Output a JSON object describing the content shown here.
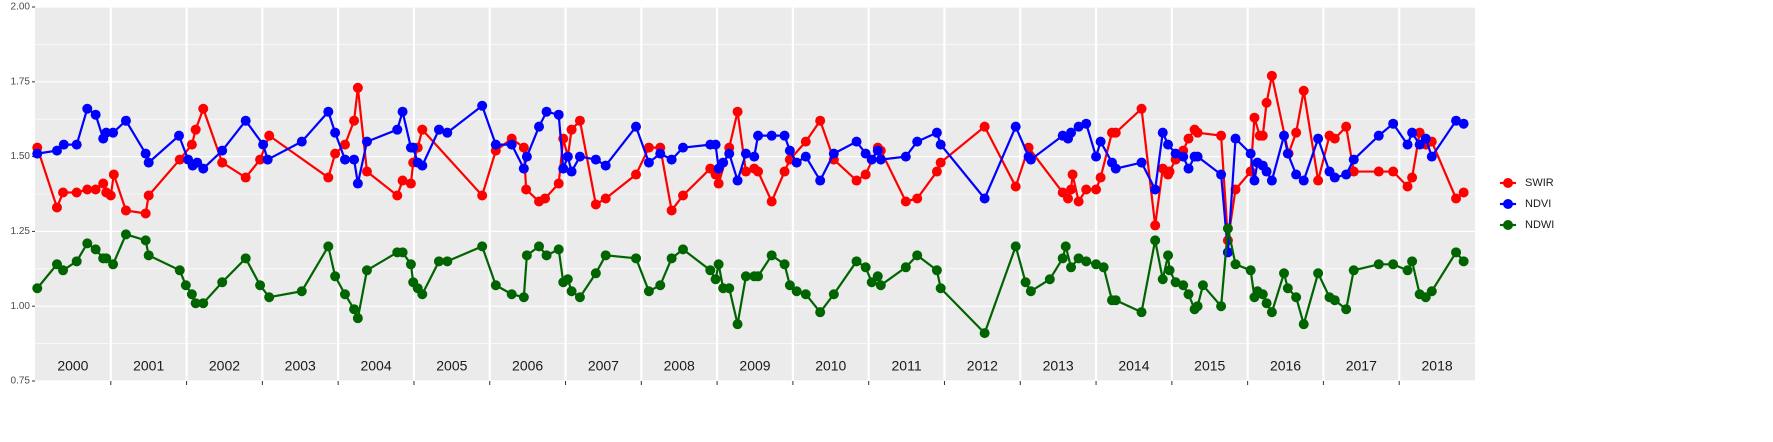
{
  "chart_data": {
    "type": "line",
    "xlim": [
      2000,
      2019
    ],
    "ylim": [
      0.75,
      2.0
    ],
    "yticks": [
      {
        "value": 0.75,
        "label": "0.75"
      },
      {
        "value": 1.0,
        "label": "1.00"
      },
      {
        "value": 1.25,
        "label": "1.25"
      },
      {
        "value": 1.5,
        "label": "1.50"
      },
      {
        "value": 1.75,
        "label": "1.75"
      },
      {
        "value": 2.0,
        "label": "2.00"
      }
    ],
    "xticks": [
      {
        "value": 2000.5,
        "label": "2000"
      },
      {
        "value": 2001.5,
        "label": "2001"
      },
      {
        "value": 2002.5,
        "label": "2002"
      },
      {
        "value": 2003.5,
        "label": "2003"
      },
      {
        "value": 2004.5,
        "label": "2004"
      },
      {
        "value": 2005.5,
        "label": "2005"
      },
      {
        "value": 2006.5,
        "label": "2006"
      },
      {
        "value": 2007.5,
        "label": "2007"
      },
      {
        "value": 2008.5,
        "label": "2008"
      },
      {
        "value": 2009.5,
        "label": "2009"
      },
      {
        "value": 2010.5,
        "label": "2010"
      },
      {
        "value": 2011.5,
        "label": "2011"
      },
      {
        "value": 2012.5,
        "label": "2012"
      },
      {
        "value": 2013.5,
        "label": "2013"
      },
      {
        "value": 2014.5,
        "label": "2014"
      },
      {
        "value": 2015.5,
        "label": "2015"
      },
      {
        "value": 2016.5,
        "label": "2016"
      },
      {
        "value": 2017.5,
        "label": "2017"
      },
      {
        "value": 2018.5,
        "label": "2018"
      }
    ],
    "grid": true,
    "legend": "right",
    "series": [
      {
        "name": "SWIR",
        "color": "#ff0000",
        "x": [
          2000.03,
          2000.29,
          2000.37,
          2000.55,
          2000.69,
          2000.8,
          2000.9,
          2000.94,
          2001.0,
          2001.04,
          2001.2,
          2001.46,
          2001.5,
          2001.91,
          2002.07,
          2002.12,
          2002.22,
          2002.47,
          2002.78,
          2002.97,
          2003.09,
          2003.87,
          2003.96,
          2004.09,
          2004.21,
          2004.26,
          2004.38,
          2004.78,
          2004.85,
          2004.96,
          2004.99,
          2005.05,
          2005.11,
          2005.9,
          2006.08,
          2006.29,
          2006.45,
          2006.48,
          2006.65,
          2006.73,
          2006.91,
          2006.97,
          2007.03,
          2007.08,
          2007.19,
          2007.4,
          2007.53,
          2007.93,
          2008.1,
          2008.25,
          2008.4,
          2008.55,
          2008.91,
          2008.98,
          2009.02,
          2009.16,
          2009.27,
          2009.38,
          2009.49,
          2009.54,
          2009.72,
          2009.89,
          2009.96,
          2010.17,
          2010.36,
          2010.54,
          2010.84,
          2010.96,
          2011.12,
          2011.16,
          2011.49,
          2011.64,
          2011.9,
          2011.95,
          2012.53,
          2012.94,
          2013.11,
          2013.56,
          2013.63,
          2013.67,
          2013.69,
          2013.77,
          2013.87,
          2014.0,
          2014.06,
          2014.21,
          2014.26,
          2014.6,
          2014.78,
          2014.88,
          2014.95,
          2014.97,
          2015.05,
          2015.15,
          2015.22,
          2015.3,
          2015.34,
          2015.65,
          2015.74,
          2015.84,
          2016.04,
          2016.09,
          2016.16,
          2016.2,
          2016.25,
          2016.32,
          2016.54,
          2016.64,
          2016.74,
          2016.93,
          2017.08,
          2017.15,
          2017.3,
          2017.4,
          2017.73,
          2017.92,
          2018.11,
          2018.17,
          2018.27,
          2018.35,
          2018.43,
          2018.75,
          2018.85
        ],
        "values": [
          1.53,
          1.33,
          1.38,
          1.38,
          1.39,
          1.39,
          1.41,
          1.38,
          1.37,
          1.44,
          1.32,
          1.31,
          1.37,
          1.49,
          1.54,
          1.59,
          1.66,
          1.48,
          1.43,
          1.49,
          1.57,
          1.43,
          1.51,
          1.54,
          1.62,
          1.73,
          1.45,
          1.37,
          1.42,
          1.41,
          1.48,
          1.53,
          1.59,
          1.37,
          1.52,
          1.56,
          1.53,
          1.39,
          1.35,
          1.36,
          1.41,
          1.56,
          1.5,
          1.59,
          1.62,
          1.34,
          1.36,
          1.44,
          1.53,
          1.53,
          1.32,
          1.37,
          1.46,
          1.44,
          1.41,
          1.53,
          1.65,
          1.45,
          1.46,
          1.45,
          1.35,
          1.45,
          1.49,
          1.55,
          1.62,
          1.49,
          1.42,
          1.44,
          1.53,
          1.52,
          1.35,
          1.36,
          1.45,
          1.48,
          1.6,
          1.4,
          1.53,
          1.38,
          1.36,
          1.39,
          1.44,
          1.35,
          1.39,
          1.39,
          1.43,
          1.58,
          1.58,
          1.66,
          1.27,
          1.46,
          1.44,
          1.45,
          1.49,
          1.52,
          1.56,
          1.59,
          1.58,
          1.57,
          1.22,
          1.39,
          1.45,
          1.63,
          1.57,
          1.57,
          1.68,
          1.77,
          1.51,
          1.58,
          1.72,
          1.42,
          1.57,
          1.56,
          1.6,
          1.45,
          1.45,
          1.45,
          1.4,
          1.43,
          1.58,
          1.54,
          1.55,
          1.36,
          1.38
        ]
      },
      {
        "name": "NDVI",
        "color": "#0000ff",
        "x": [
          2000.03,
          2000.29,
          2000.38,
          2000.55,
          2000.69,
          2000.8,
          2000.9,
          2000.94,
          2001.03,
          2001.2,
          2001.46,
          2001.5,
          2001.9,
          2002.02,
          2002.08,
          2002.14,
          2002.22,
          2002.47,
          2002.78,
          2003.01,
          2003.07,
          2003.52,
          2003.87,
          2003.96,
          2004.09,
          2004.21,
          2004.26,
          2004.38,
          2004.78,
          2004.85,
          2004.96,
          2004.99,
          2005.05,
          2005.11,
          2005.33,
          2005.44,
          2005.9,
          2006.08,
          2006.29,
          2006.45,
          2006.49,
          2006.65,
          2006.75,
          2006.91,
          2006.97,
          2007.03,
          2007.08,
          2007.19,
          2007.4,
          2007.53,
          2007.93,
          2008.1,
          2008.25,
          2008.4,
          2008.55,
          2008.91,
          2008.98,
          2009.02,
          2009.08,
          2009.16,
          2009.27,
          2009.38,
          2009.49,
          2009.54,
          2009.72,
          2009.89,
          2009.96,
          2010.05,
          2010.17,
          2010.36,
          2010.54,
          2010.84,
          2010.96,
          2011.04,
          2011.12,
          2011.16,
          2011.49,
          2011.64,
          2011.9,
          2011.95,
          2012.53,
          2012.94,
          2013.11,
          2013.14,
          2013.56,
          2013.63,
          2013.67,
          2013.77,
          2013.87,
          2014.0,
          2014.06,
          2014.21,
          2014.26,
          2014.6,
          2014.78,
          2014.88,
          2014.95,
          2015.05,
          2015.15,
          2015.22,
          2015.3,
          2015.34,
          2015.65,
          2015.74,
          2015.84,
          2016.04,
          2016.09,
          2016.13,
          2016.2,
          2016.25,
          2016.32,
          2016.48,
          2016.53,
          2016.64,
          2016.74,
          2016.93,
          2017.08,
          2017.15,
          2017.3,
          2017.4,
          2017.73,
          2017.92,
          2018.11,
          2018.17,
          2018.27,
          2018.35,
          2018.43,
          2018.75,
          2018.85
        ],
        "values": [
          1.51,
          1.52,
          1.54,
          1.54,
          1.66,
          1.64,
          1.56,
          1.58,
          1.58,
          1.62,
          1.51,
          1.48,
          1.57,
          1.49,
          1.47,
          1.48,
          1.46,
          1.52,
          1.62,
          1.54,
          1.49,
          1.55,
          1.65,
          1.58,
          1.49,
          1.49,
          1.41,
          1.55,
          1.59,
          1.65,
          1.53,
          1.53,
          1.48,
          1.47,
          1.59,
          1.58,
          1.67,
          1.54,
          1.54,
          1.46,
          1.5,
          1.6,
          1.65,
          1.64,
          1.46,
          1.5,
          1.45,
          1.5,
          1.49,
          1.47,
          1.6,
          1.48,
          1.51,
          1.49,
          1.53,
          1.54,
          1.54,
          1.46,
          1.48,
          1.51,
          1.42,
          1.51,
          1.5,
          1.57,
          1.57,
          1.57,
          1.52,
          1.48,
          1.5,
          1.42,
          1.51,
          1.55,
          1.51,
          1.49,
          1.52,
          1.49,
          1.5,
          1.55,
          1.58,
          1.54,
          1.36,
          1.6,
          1.5,
          1.49,
          1.57,
          1.56,
          1.58,
          1.6,
          1.61,
          1.5,
          1.55,
          1.48,
          1.46,
          1.48,
          1.39,
          1.58,
          1.54,
          1.51,
          1.5,
          1.46,
          1.5,
          1.5,
          1.44,
          1.18,
          1.56,
          1.51,
          1.42,
          1.48,
          1.47,
          1.45,
          1.42,
          1.57,
          1.51,
          1.44,
          1.42,
          1.56,
          1.45,
          1.43,
          1.44,
          1.49,
          1.57,
          1.61,
          1.54,
          1.58,
          1.54,
          1.56,
          1.5,
          1.62,
          1.61
        ]
      },
      {
        "name": "NDWI",
        "color": "#006400",
        "x": [
          2000.03,
          2000.29,
          2000.37,
          2000.55,
          2000.69,
          2000.8,
          2000.9,
          2000.94,
          2001.03,
          2001.2,
          2001.46,
          2001.5,
          2001.91,
          2001.99,
          2002.07,
          2002.12,
          2002.22,
          2002.47,
          2002.78,
          2002.97,
          2003.09,
          2003.52,
          2003.87,
          2003.96,
          2004.09,
          2004.21,
          2004.26,
          2004.38,
          2004.78,
          2004.85,
          2004.96,
          2004.99,
          2005.05,
          2005.11,
          2005.33,
          2005.44,
          2005.9,
          2006.08,
          2006.29,
          2006.45,
          2006.49,
          2006.65,
          2006.75,
          2006.91,
          2006.97,
          2007.03,
          2007.08,
          2007.19,
          2007.4,
          2007.53,
          2007.93,
          2008.1,
          2008.25,
          2008.4,
          2008.55,
          2008.91,
          2008.98,
          2009.02,
          2009.08,
          2009.16,
          2009.27,
          2009.38,
          2009.49,
          2009.54,
          2009.72,
          2009.89,
          2009.96,
          2010.05,
          2010.17,
          2010.36,
          2010.54,
          2010.84,
          2010.96,
          2011.04,
          2011.12,
          2011.16,
          2011.49,
          2011.64,
          2011.9,
          2011.95,
          2012.53,
          2012.94,
          2013.07,
          2013.14,
          2013.39,
          2013.56,
          2013.6,
          2013.67,
          2013.77,
          2013.87,
          2014.0,
          2014.1,
          2014.21,
          2014.26,
          2014.6,
          2014.78,
          2014.88,
          2014.95,
          2014.97,
          2015.05,
          2015.15,
          2015.22,
          2015.3,
          2015.34,
          2015.41,
          2015.65,
          2015.74,
          2015.84,
          2016.04,
          2016.09,
          2016.13,
          2016.2,
          2016.25,
          2016.32,
          2016.48,
          2016.53,
          2016.64,
          2016.74,
          2016.93,
          2017.08,
          2017.15,
          2017.3,
          2017.4,
          2017.73,
          2017.92,
          2018.11,
          2018.17,
          2018.27,
          2018.35,
          2018.43,
          2018.75,
          2018.85
        ],
        "values": [
          1.06,
          1.14,
          1.12,
          1.15,
          1.21,
          1.19,
          1.16,
          1.16,
          1.14,
          1.24,
          1.22,
          1.17,
          1.12,
          1.07,
          1.04,
          1.01,
          1.01,
          1.08,
          1.16,
          1.07,
          1.03,
          1.05,
          1.2,
          1.1,
          1.04,
          0.99,
          0.96,
          1.12,
          1.18,
          1.18,
          1.14,
          1.08,
          1.06,
          1.04,
          1.15,
          1.15,
          1.2,
          1.07,
          1.04,
          1.03,
          1.17,
          1.2,
          1.17,
          1.19,
          1.08,
          1.09,
          1.05,
          1.03,
          1.11,
          1.17,
          1.16,
          1.05,
          1.07,
          1.16,
          1.19,
          1.12,
          1.09,
          1.14,
          1.06,
          1.06,
          0.94,
          1.1,
          1.1,
          1.1,
          1.17,
          1.14,
          1.07,
          1.05,
          1.04,
          0.98,
          1.04,
          1.15,
          1.13,
          1.08,
          1.1,
          1.07,
          1.13,
          1.17,
          1.12,
          1.06,
          0.91,
          1.2,
          1.08,
          1.05,
          1.09,
          1.16,
          1.2,
          1.13,
          1.16,
          1.15,
          1.14,
          1.13,
          1.02,
          1.02,
          0.98,
          1.22,
          1.09,
          1.17,
          1.12,
          1.08,
          1.07,
          1.04,
          0.99,
          1.0,
          1.07,
          1.0,
          1.26,
          1.14,
          1.12,
          1.03,
          1.05,
          1.04,
          1.01,
          0.98,
          1.11,
          1.06,
          1.03,
          0.94,
          1.11,
          1.03,
          1.02,
          0.99,
          1.12,
          1.14,
          1.14,
          1.12,
          1.15,
          1.04,
          1.03,
          1.05,
          1.18,
          1.15
        ]
      }
    ]
  }
}
